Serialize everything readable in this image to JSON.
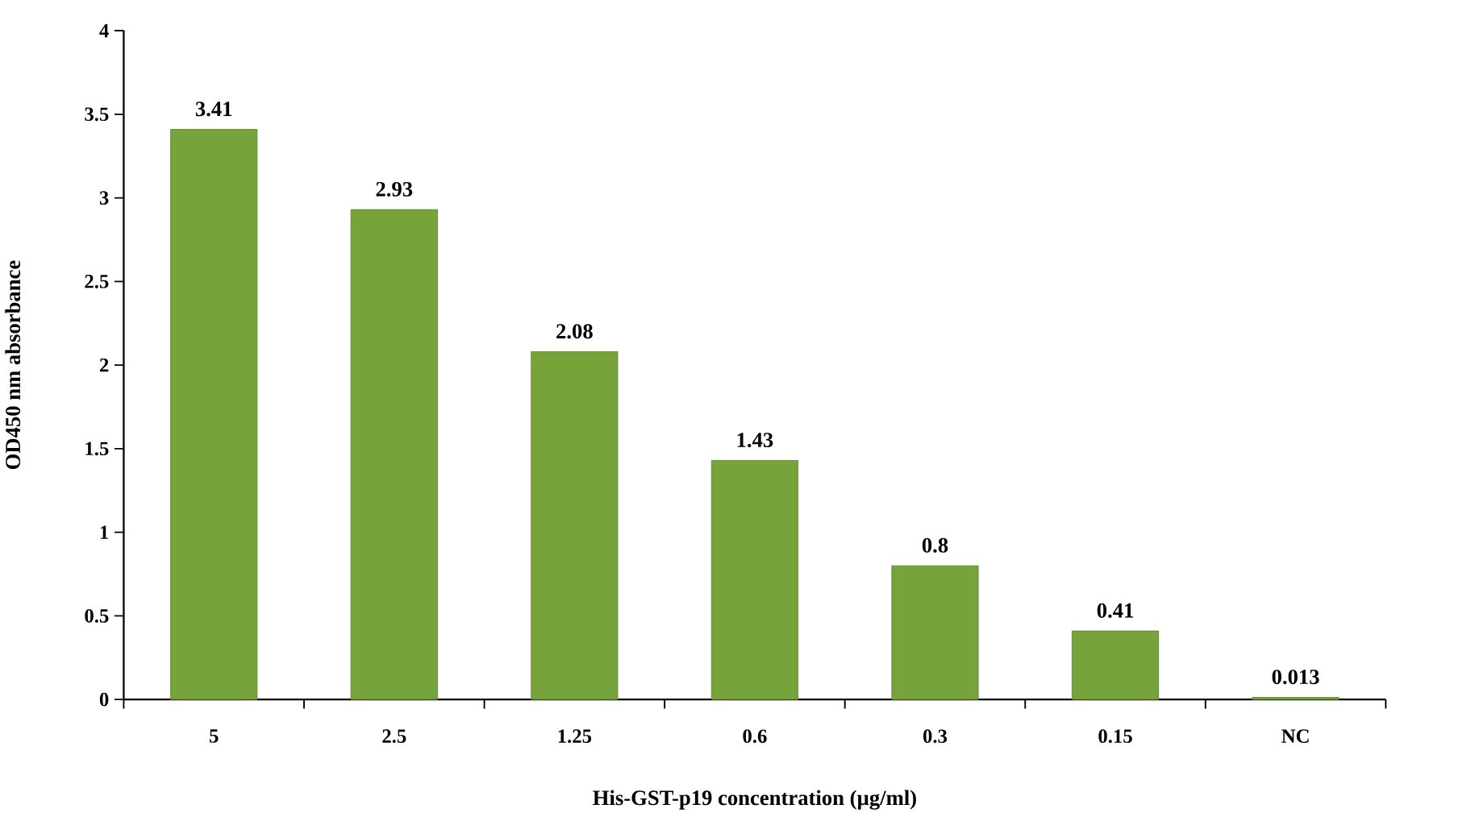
{
  "chart_data": {
    "type": "bar",
    "xlabel": "His-GST-p19 concentration (µg/ml)",
    "ylabel": "OD450 nm absorbance",
    "categories": [
      "5",
      "2.5",
      "1.25",
      "0.6",
      "0.3",
      "0.15",
      "NC"
    ],
    "values": [
      3.41,
      2.93,
      2.08,
      1.43,
      0.8,
      0.41,
      0.013
    ],
    "color": "#77a33b",
    "ylim": [
      0,
      4
    ],
    "yticks": [
      0,
      0.5,
      1,
      1.5,
      2,
      2.5,
      3,
      3.5,
      4
    ],
    "data_labels": true
  }
}
